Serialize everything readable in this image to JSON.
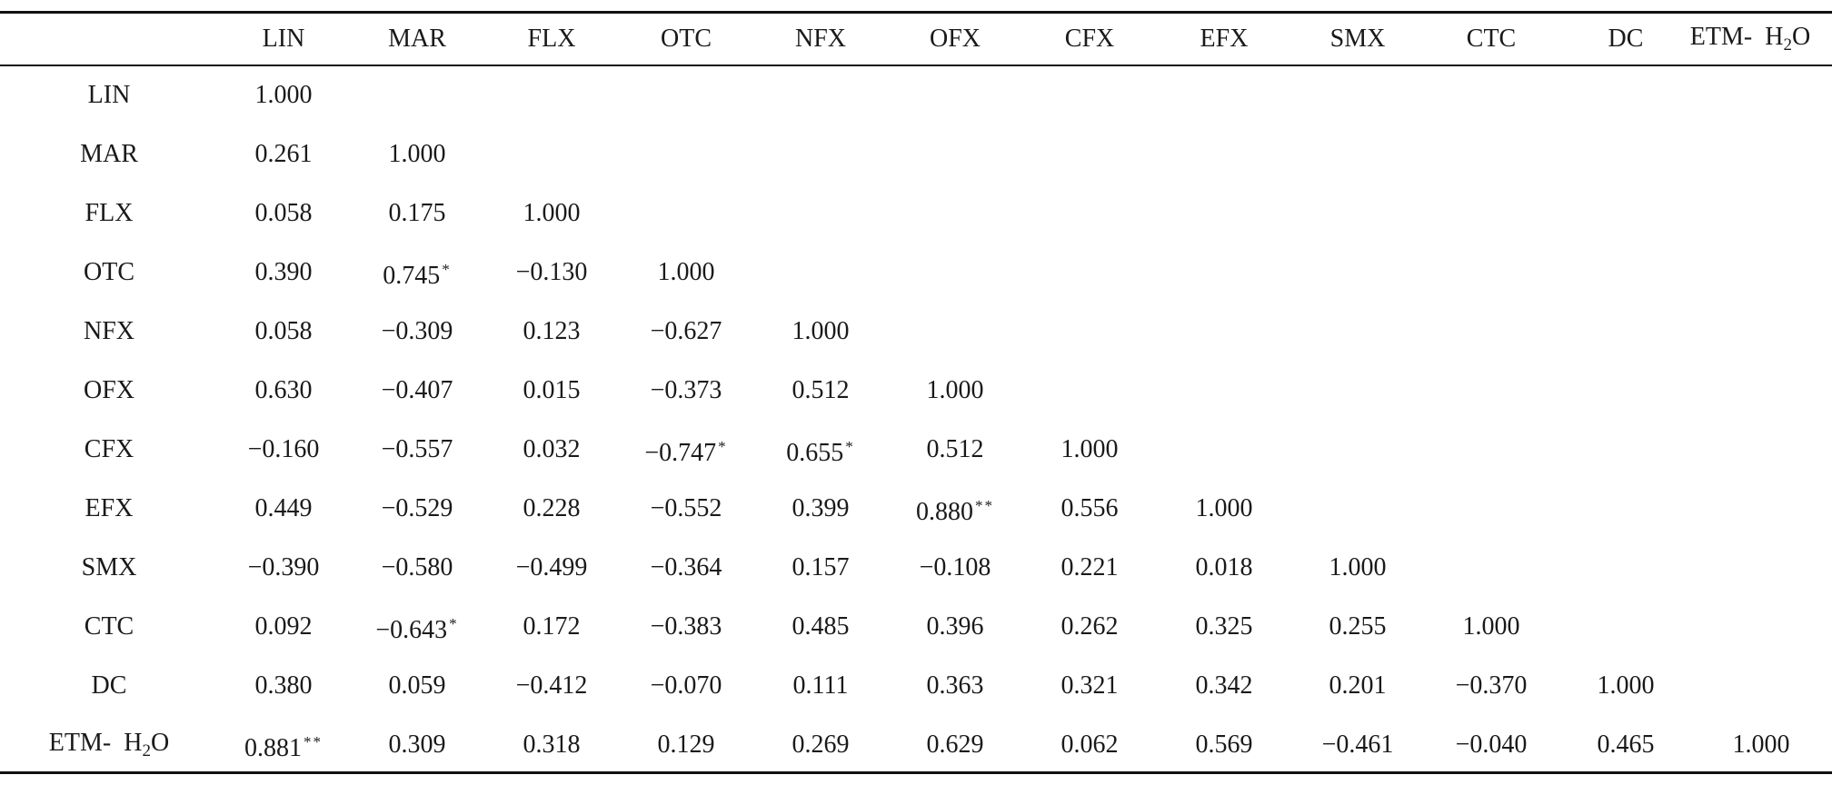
{
  "table": {
    "columns": [
      "LIN",
      "MAR",
      "FLX",
      "OTC",
      "NFX",
      "OFX",
      "CFX",
      "EFX",
      "SMX",
      "CTC",
      "DC",
      "ETM- H2O"
    ],
    "rows": [
      {
        "label": "LIN",
        "values": [
          {
            "v": "1.000"
          }
        ]
      },
      {
        "label": "MAR",
        "values": [
          {
            "v": "0.261"
          },
          {
            "v": "1.000"
          }
        ]
      },
      {
        "label": "FLX",
        "values": [
          {
            "v": "0.058"
          },
          {
            "v": "0.175"
          },
          {
            "v": "1.000"
          }
        ]
      },
      {
        "label": "OTC",
        "values": [
          {
            "v": "0.390"
          },
          {
            "v": "0.745",
            "s": "*"
          },
          {
            "v": "−0.130"
          },
          {
            "v": "1.000"
          }
        ]
      },
      {
        "label": "NFX",
        "values": [
          {
            "v": "0.058"
          },
          {
            "v": "−0.309"
          },
          {
            "v": "0.123"
          },
          {
            "v": "−0.627"
          },
          {
            "v": "1.000"
          }
        ]
      },
      {
        "label": "OFX",
        "values": [
          {
            "v": "0.630"
          },
          {
            "v": "−0.407"
          },
          {
            "v": "0.015"
          },
          {
            "v": "−0.373"
          },
          {
            "v": "0.512"
          },
          {
            "v": "1.000"
          }
        ]
      },
      {
        "label": "CFX",
        "values": [
          {
            "v": "−0.160"
          },
          {
            "v": "−0.557"
          },
          {
            "v": "0.032"
          },
          {
            "v": "−0.747",
            "s": "*"
          },
          {
            "v": "0.655",
            "s": "*"
          },
          {
            "v": "0.512"
          },
          {
            "v": "1.000"
          }
        ]
      },
      {
        "label": "EFX",
        "values": [
          {
            "v": "0.449"
          },
          {
            "v": "−0.529"
          },
          {
            "v": "0.228"
          },
          {
            "v": "−0.552"
          },
          {
            "v": "0.399"
          },
          {
            "v": "0.880",
            "s": "**"
          },
          {
            "v": "0.556"
          },
          {
            "v": "1.000"
          }
        ]
      },
      {
        "label": "SMX",
        "values": [
          {
            "v": "−0.390"
          },
          {
            "v": "−0.580"
          },
          {
            "v": "−0.499"
          },
          {
            "v": "−0.364"
          },
          {
            "v": "0.157"
          },
          {
            "v": "−0.108"
          },
          {
            "v": "0.221"
          },
          {
            "v": "0.018"
          },
          {
            "v": "1.000"
          }
        ]
      },
      {
        "label": "CTC",
        "values": [
          {
            "v": "0.092"
          },
          {
            "v": "−0.643",
            "s": "*"
          },
          {
            "v": "0.172"
          },
          {
            "v": "−0.383"
          },
          {
            "v": "0.485"
          },
          {
            "v": "0.396"
          },
          {
            "v": "0.262"
          },
          {
            "v": "0.325"
          },
          {
            "v": "0.255"
          },
          {
            "v": "1.000"
          }
        ]
      },
      {
        "label": "DC",
        "values": [
          {
            "v": "0.380"
          },
          {
            "v": "0.059"
          },
          {
            "v": "−0.412"
          },
          {
            "v": "−0.070"
          },
          {
            "v": "0.111"
          },
          {
            "v": "0.363"
          },
          {
            "v": "0.321"
          },
          {
            "v": "0.342"
          },
          {
            "v": "0.201"
          },
          {
            "v": "−0.370"
          },
          {
            "v": "1.000"
          }
        ]
      },
      {
        "label": "ETM- H2O",
        "values": [
          {
            "v": "0.881",
            "s": "**"
          },
          {
            "v": "0.309"
          },
          {
            "v": "0.318"
          },
          {
            "v": "0.129"
          },
          {
            "v": "0.269"
          },
          {
            "v": "0.629"
          },
          {
            "v": "0.062"
          },
          {
            "v": "0.569"
          },
          {
            "v": "−0.461"
          },
          {
            "v": "−0.040"
          },
          {
            "v": "0.465"
          },
          {
            "v": "1.000"
          }
        ]
      }
    ]
  }
}
